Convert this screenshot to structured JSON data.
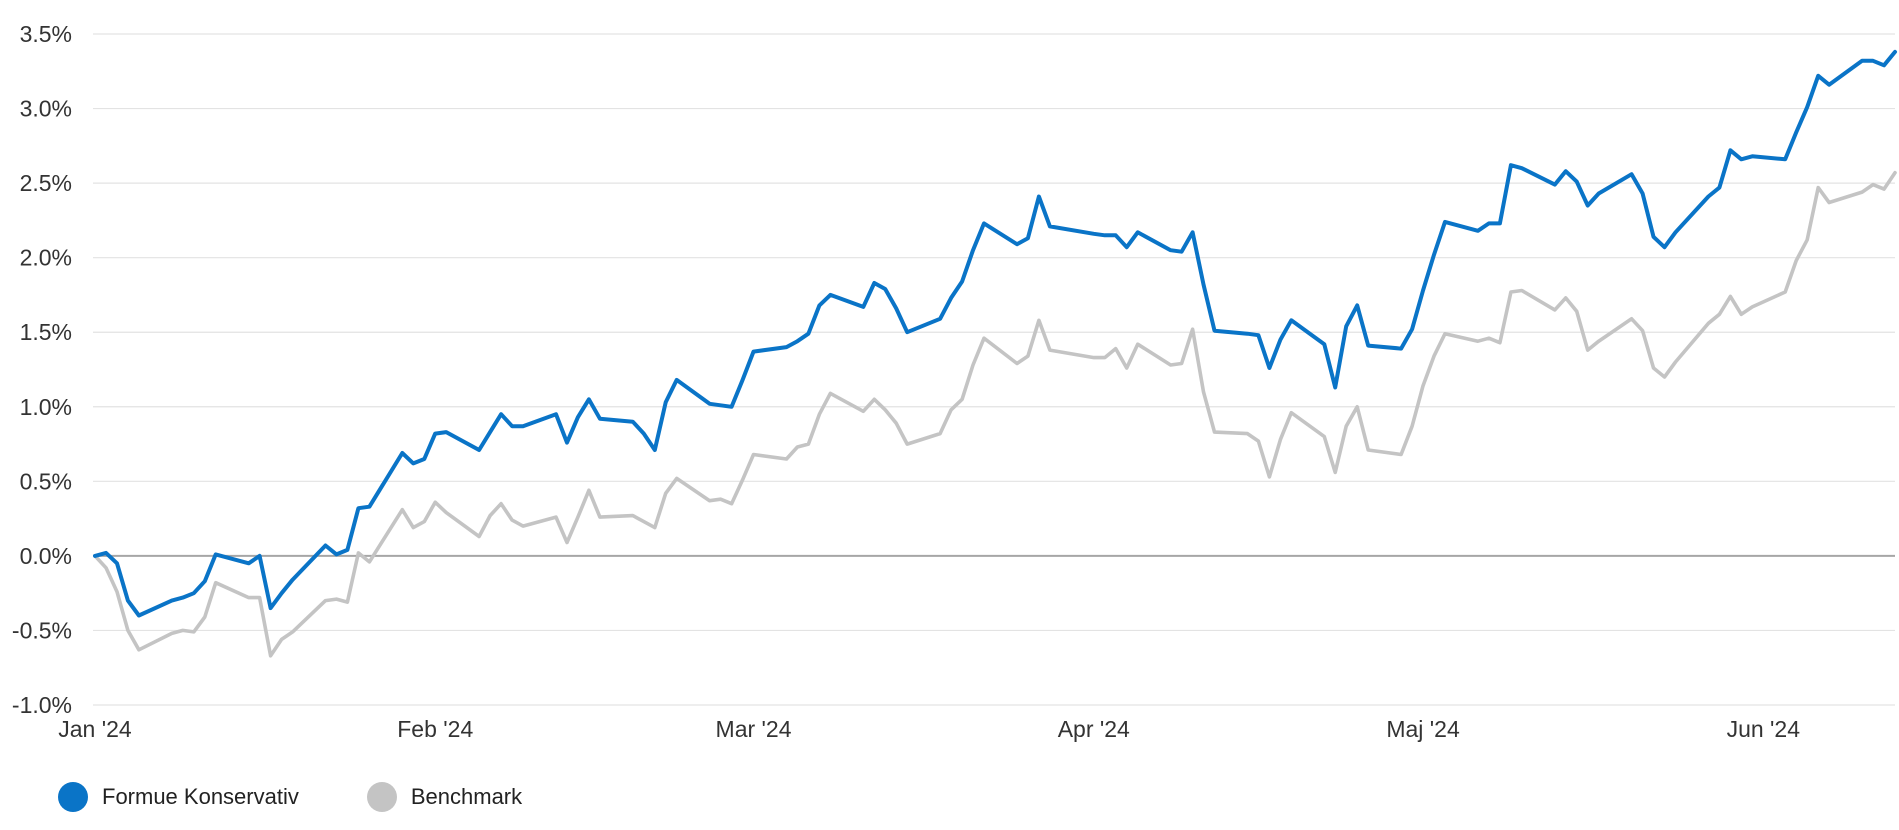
{
  "chart_data": {
    "type": "line",
    "title": "",
    "xlabel": "",
    "ylabel": "",
    "ylim": [
      -1.0,
      3.5
    ],
    "y_ticks": [
      "-1.0%",
      "-0.5%",
      "0.0%",
      "0.5%",
      "1.0%",
      "1.5%",
      "2.0%",
      "2.5%",
      "3.0%",
      "3.5%"
    ],
    "y_tick_values": [
      -1.0,
      -0.5,
      0.0,
      0.5,
      1.0,
      1.5,
      2.0,
      2.5,
      3.0,
      3.5
    ],
    "x_ticks": [
      "Jan '24",
      "Feb '24",
      "Mar '24",
      "Apr '24",
      "Maj '24",
      "Jun '24"
    ],
    "x_tick_dates": [
      "2024-01-01",
      "2024-02-01",
      "2024-03-01",
      "2024-04-01",
      "2024-05-01",
      "2024-06-01"
    ],
    "grid": "horizontal",
    "legend_position": "bottom-left",
    "series": [
      {
        "name": "Formue Konservativ",
        "color": "#0a74c7",
        "points": [
          [
            "2024-01-01",
            0.0
          ],
          [
            "2024-01-02",
            0.02
          ],
          [
            "2024-01-03",
            -0.05
          ],
          [
            "2024-01-04",
            -0.3
          ],
          [
            "2024-01-05",
            -0.4
          ],
          [
            "2024-01-08",
            -0.3
          ],
          [
            "2024-01-09",
            -0.28
          ],
          [
            "2024-01-10",
            -0.25
          ],
          [
            "2024-01-11",
            -0.17
          ],
          [
            "2024-01-12",
            0.01
          ],
          [
            "2024-01-15",
            -0.05
          ],
          [
            "2024-01-16",
            0.0
          ],
          [
            "2024-01-17",
            -0.35
          ],
          [
            "2024-01-18",
            -0.25
          ],
          [
            "2024-01-19",
            -0.16
          ],
          [
            "2024-01-22",
            0.07
          ],
          [
            "2024-01-23",
            0.01
          ],
          [
            "2024-01-24",
            0.04
          ],
          [
            "2024-01-25",
            0.32
          ],
          [
            "2024-01-26",
            0.33
          ],
          [
            "2024-01-29",
            0.69
          ],
          [
            "2024-01-30",
            0.62
          ],
          [
            "2024-01-31",
            0.65
          ],
          [
            "2024-02-01",
            0.82
          ],
          [
            "2024-02-02",
            0.83
          ],
          [
            "2024-02-05",
            0.71
          ],
          [
            "2024-02-06",
            0.83
          ],
          [
            "2024-02-07",
            0.95
          ],
          [
            "2024-02-08",
            0.87
          ],
          [
            "2024-02-09",
            0.87
          ],
          [
            "2024-02-12",
            0.95
          ],
          [
            "2024-02-13",
            0.76
          ],
          [
            "2024-02-14",
            0.93
          ],
          [
            "2024-02-15",
            1.05
          ],
          [
            "2024-02-16",
            0.92
          ],
          [
            "2024-02-19",
            0.9
          ],
          [
            "2024-02-20",
            0.82
          ],
          [
            "2024-02-21",
            0.71
          ],
          [
            "2024-02-22",
            1.03
          ],
          [
            "2024-02-23",
            1.18
          ],
          [
            "2024-02-26",
            1.02
          ],
          [
            "2024-02-27",
            1.01
          ],
          [
            "2024-02-28",
            1.0
          ],
          [
            "2024-02-29",
            1.18
          ],
          [
            "2024-03-01",
            1.37
          ],
          [
            "2024-03-04",
            1.4
          ],
          [
            "2024-03-05",
            1.44
          ],
          [
            "2024-03-06",
            1.49
          ],
          [
            "2024-03-07",
            1.68
          ],
          [
            "2024-03-08",
            1.75
          ],
          [
            "2024-03-11",
            1.67
          ],
          [
            "2024-03-12",
            1.83
          ],
          [
            "2024-03-13",
            1.79
          ],
          [
            "2024-03-14",
            1.66
          ],
          [
            "2024-03-15",
            1.5
          ],
          [
            "2024-03-18",
            1.59
          ],
          [
            "2024-03-19",
            1.73
          ],
          [
            "2024-03-20",
            1.84
          ],
          [
            "2024-03-21",
            2.05
          ],
          [
            "2024-03-22",
            2.23
          ],
          [
            "2024-03-25",
            2.09
          ],
          [
            "2024-03-26",
            2.13
          ],
          [
            "2024-03-27",
            2.41
          ],
          [
            "2024-03-28",
            2.21
          ],
          [
            "2024-04-01",
            2.16
          ],
          [
            "2024-04-02",
            2.15
          ],
          [
            "2024-04-03",
            2.15
          ],
          [
            "2024-04-04",
            2.07
          ],
          [
            "2024-04-05",
            2.17
          ],
          [
            "2024-04-08",
            2.05
          ],
          [
            "2024-04-09",
            2.04
          ],
          [
            "2024-04-10",
            2.17
          ],
          [
            "2024-04-11",
            1.82
          ],
          [
            "2024-04-12",
            1.51
          ],
          [
            "2024-04-15",
            1.49
          ],
          [
            "2024-04-16",
            1.48
          ],
          [
            "2024-04-17",
            1.26
          ],
          [
            "2024-04-18",
            1.45
          ],
          [
            "2024-04-19",
            1.58
          ],
          [
            "2024-04-22",
            1.42
          ],
          [
            "2024-04-23",
            1.13
          ],
          [
            "2024-04-24",
            1.54
          ],
          [
            "2024-04-25",
            1.68
          ],
          [
            "2024-04-26",
            1.41
          ],
          [
            "2024-04-29",
            1.39
          ],
          [
            "2024-04-30",
            1.52
          ],
          [
            "2024-05-01",
            1.78
          ],
          [
            "2024-05-02",
            2.02
          ],
          [
            "2024-05-03",
            2.24
          ],
          [
            "2024-05-06",
            2.18
          ],
          [
            "2024-05-07",
            2.23
          ],
          [
            "2024-05-08",
            2.23
          ],
          [
            "2024-05-09",
            2.62
          ],
          [
            "2024-05-10",
            2.6
          ],
          [
            "2024-05-13",
            2.49
          ],
          [
            "2024-05-14",
            2.58
          ],
          [
            "2024-05-15",
            2.51
          ],
          [
            "2024-05-16",
            2.35
          ],
          [
            "2024-05-17",
            2.43
          ],
          [
            "2024-05-20",
            2.56
          ],
          [
            "2024-05-21",
            2.43
          ],
          [
            "2024-05-22",
            2.14
          ],
          [
            "2024-05-23",
            2.07
          ],
          [
            "2024-05-24",
            2.17
          ],
          [
            "2024-05-27",
            2.41
          ],
          [
            "2024-05-28",
            2.47
          ],
          [
            "2024-05-29",
            2.72
          ],
          [
            "2024-05-30",
            2.66
          ],
          [
            "2024-05-31",
            2.68
          ],
          [
            "2024-06-03",
            2.66
          ],
          [
            "2024-06-04",
            2.84
          ],
          [
            "2024-06-05",
            3.01
          ],
          [
            "2024-06-06",
            3.22
          ],
          [
            "2024-06-07",
            3.16
          ],
          [
            "2024-06-10",
            3.32
          ],
          [
            "2024-06-11",
            3.32
          ],
          [
            "2024-06-12",
            3.29
          ],
          [
            "2024-06-13",
            3.38
          ]
        ]
      },
      {
        "name": "Benchmark",
        "color": "#c4c4c4",
        "points": [
          [
            "2024-01-01",
            0.0
          ],
          [
            "2024-01-02",
            -0.08
          ],
          [
            "2024-01-03",
            -0.24
          ],
          [
            "2024-01-04",
            -0.5
          ],
          [
            "2024-01-05",
            -0.63
          ],
          [
            "2024-01-08",
            -0.52
          ],
          [
            "2024-01-09",
            -0.5
          ],
          [
            "2024-01-10",
            -0.51
          ],
          [
            "2024-01-11",
            -0.41
          ],
          [
            "2024-01-12",
            -0.18
          ],
          [
            "2024-01-15",
            -0.28
          ],
          [
            "2024-01-16",
            -0.28
          ],
          [
            "2024-01-17",
            -0.67
          ],
          [
            "2024-01-18",
            -0.56
          ],
          [
            "2024-01-19",
            -0.51
          ],
          [
            "2024-01-22",
            -0.3
          ],
          [
            "2024-01-23",
            -0.29
          ],
          [
            "2024-01-24",
            -0.31
          ],
          [
            "2024-01-25",
            0.02
          ],
          [
            "2024-01-26",
            -0.04
          ],
          [
            "2024-01-29",
            0.31
          ],
          [
            "2024-01-30",
            0.19
          ],
          [
            "2024-01-31",
            0.23
          ],
          [
            "2024-02-01",
            0.36
          ],
          [
            "2024-02-02",
            0.29
          ],
          [
            "2024-02-05",
            0.13
          ],
          [
            "2024-02-06",
            0.27
          ],
          [
            "2024-02-07",
            0.35
          ],
          [
            "2024-02-08",
            0.24
          ],
          [
            "2024-02-09",
            0.2
          ],
          [
            "2024-02-12",
            0.26
          ],
          [
            "2024-02-13",
            0.09
          ],
          [
            "2024-02-14",
            0.26
          ],
          [
            "2024-02-15",
            0.44
          ],
          [
            "2024-02-16",
            0.26
          ],
          [
            "2024-02-19",
            0.27
          ],
          [
            "2024-02-20",
            0.23
          ],
          [
            "2024-02-21",
            0.19
          ],
          [
            "2024-02-22",
            0.42
          ],
          [
            "2024-02-23",
            0.52
          ],
          [
            "2024-02-26",
            0.37
          ],
          [
            "2024-02-27",
            0.38
          ],
          [
            "2024-02-28",
            0.35
          ],
          [
            "2024-02-29",
            0.51
          ],
          [
            "2024-03-01",
            0.68
          ],
          [
            "2024-03-04",
            0.65
          ],
          [
            "2024-03-05",
            0.73
          ],
          [
            "2024-03-06",
            0.75
          ],
          [
            "2024-03-07",
            0.95
          ],
          [
            "2024-03-08",
            1.09
          ],
          [
            "2024-03-11",
            0.97
          ],
          [
            "2024-03-12",
            1.05
          ],
          [
            "2024-03-13",
            0.98
          ],
          [
            "2024-03-14",
            0.89
          ],
          [
            "2024-03-15",
            0.75
          ],
          [
            "2024-03-18",
            0.82
          ],
          [
            "2024-03-19",
            0.98
          ],
          [
            "2024-03-20",
            1.05
          ],
          [
            "2024-03-21",
            1.28
          ],
          [
            "2024-03-22",
            1.46
          ],
          [
            "2024-03-25",
            1.29
          ],
          [
            "2024-03-26",
            1.34
          ],
          [
            "2024-03-27",
            1.58
          ],
          [
            "2024-03-28",
            1.38
          ],
          [
            "2024-04-01",
            1.33
          ],
          [
            "2024-04-02",
            1.33
          ],
          [
            "2024-04-03",
            1.39
          ],
          [
            "2024-04-04",
            1.26
          ],
          [
            "2024-04-05",
            1.42
          ],
          [
            "2024-04-08",
            1.28
          ],
          [
            "2024-04-09",
            1.29
          ],
          [
            "2024-04-10",
            1.52
          ],
          [
            "2024-04-11",
            1.1
          ],
          [
            "2024-04-12",
            0.83
          ],
          [
            "2024-04-15",
            0.82
          ],
          [
            "2024-04-16",
            0.77
          ],
          [
            "2024-04-17",
            0.53
          ],
          [
            "2024-04-18",
            0.78
          ],
          [
            "2024-04-19",
            0.96
          ],
          [
            "2024-04-22",
            0.8
          ],
          [
            "2024-04-23",
            0.56
          ],
          [
            "2024-04-24",
            0.87
          ],
          [
            "2024-04-25",
            1.0
          ],
          [
            "2024-04-26",
            0.71
          ],
          [
            "2024-04-29",
            0.68
          ],
          [
            "2024-04-30",
            0.87
          ],
          [
            "2024-05-01",
            1.14
          ],
          [
            "2024-05-02",
            1.34
          ],
          [
            "2024-05-03",
            1.49
          ],
          [
            "2024-05-06",
            1.44
          ],
          [
            "2024-05-07",
            1.46
          ],
          [
            "2024-05-08",
            1.43
          ],
          [
            "2024-05-09",
            1.77
          ],
          [
            "2024-05-10",
            1.78
          ],
          [
            "2024-05-13",
            1.65
          ],
          [
            "2024-05-14",
            1.73
          ],
          [
            "2024-05-15",
            1.64
          ],
          [
            "2024-05-16",
            1.38
          ],
          [
            "2024-05-17",
            1.44
          ],
          [
            "2024-05-20",
            1.59
          ],
          [
            "2024-05-21",
            1.51
          ],
          [
            "2024-05-22",
            1.26
          ],
          [
            "2024-05-23",
            1.2
          ],
          [
            "2024-05-24",
            1.3
          ],
          [
            "2024-05-27",
            1.56
          ],
          [
            "2024-05-28",
            1.62
          ],
          [
            "2024-05-29",
            1.74
          ],
          [
            "2024-05-30",
            1.62
          ],
          [
            "2024-05-31",
            1.67
          ],
          [
            "2024-06-03",
            1.77
          ],
          [
            "2024-06-04",
            1.98
          ],
          [
            "2024-06-05",
            2.12
          ],
          [
            "2024-06-06",
            2.47
          ],
          [
            "2024-06-07",
            2.37
          ],
          [
            "2024-06-10",
            2.44
          ],
          [
            "2024-06-11",
            2.49
          ],
          [
            "2024-06-12",
            2.46
          ],
          [
            "2024-06-13",
            2.57
          ]
        ]
      }
    ]
  }
}
